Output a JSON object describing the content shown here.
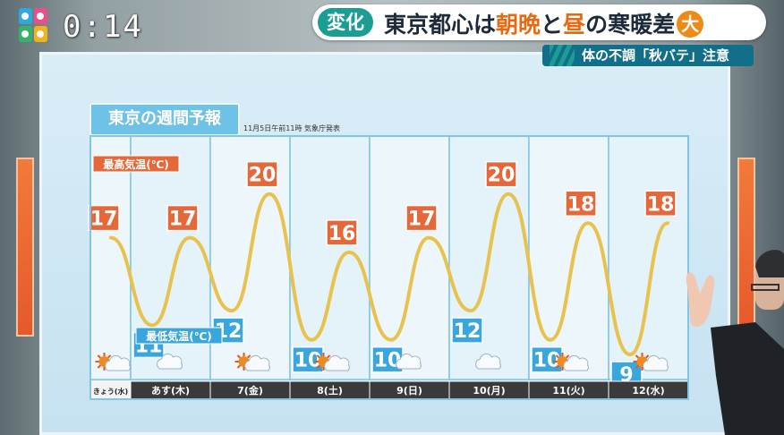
{
  "header": {
    "clock": "0:14",
    "tag": "変化",
    "headline_a": "東京都心は",
    "headline_em1": "朝晩",
    "headline_b": "と",
    "headline_em2": "昼",
    "headline_c": "の寒暖差",
    "headline_badge": "大",
    "subline": "体の不調「秋バテ」注意"
  },
  "colors": {
    "high": "#e4683a",
    "low": "#3aa6de",
    "line": "#e8c24e",
    "day_bar": "#3a3a3a",
    "today_bar": "#f4f4f4"
  },
  "chart_data": {
    "type": "line",
    "title": "東京の週間予報",
    "note": "11月5日午前11時 気象庁発表",
    "high_label": "最高気温(℃)",
    "low_label": "最低気温(℃)",
    "days": [
      "きょう(水)",
      "あす(木)",
      "7(金)",
      "8(土)",
      "9(日)",
      "10(月)",
      "11(火)",
      "12(水)"
    ],
    "today_index": 0,
    "weather_icons": [
      "sun-cloud-icon",
      "cloud-icon",
      "sun-cloud-icon",
      "sun-cloud-icon",
      "cloud-icon",
      "cloud-icon",
      "sun-cloud-icon",
      "sun-cloud-icon"
    ],
    "series": [
      {
        "name": "最高気温(℃)",
        "values": [
          17,
          17,
          20,
          16,
          17,
          20,
          18,
          18
        ]
      },
      {
        "name": "最低気温(℃)",
        "values": [
          null,
          11,
          12,
          10,
          10,
          12,
          10,
          9
        ]
      }
    ],
    "ylim": [
      8,
      21
    ]
  }
}
